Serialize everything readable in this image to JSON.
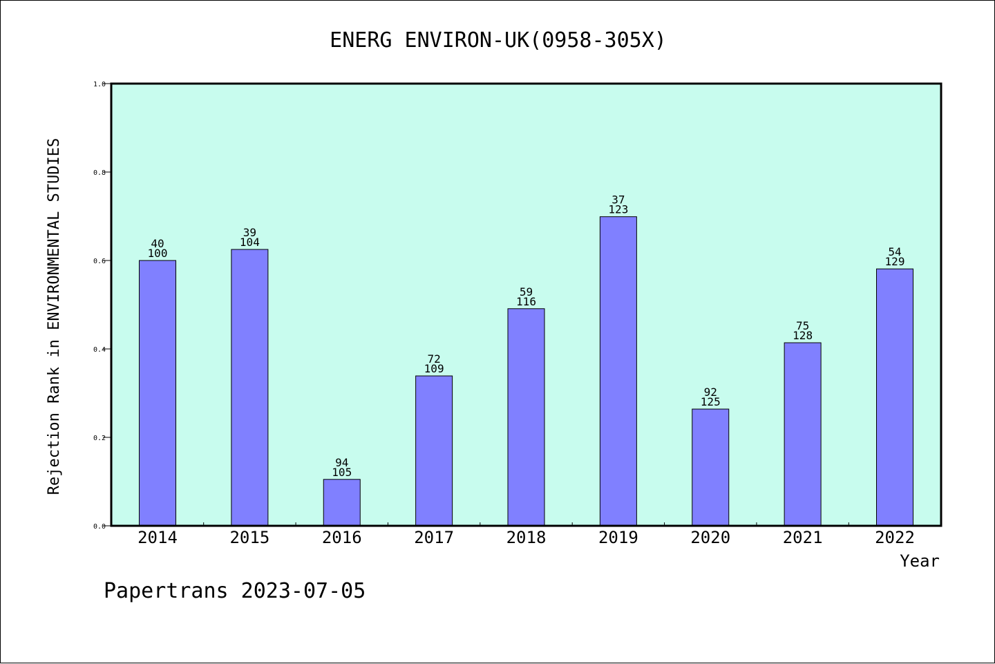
{
  "chart_data": {
    "type": "bar",
    "title": "ENERG ENVIRON-UK(0958-305X)",
    "xlabel": "Year",
    "ylabel": "Rejection Rank in ENVIRONMENTAL STUDIES",
    "categories": [
      "2014",
      "2015",
      "2016",
      "2017",
      "2018",
      "2019",
      "2020",
      "2021",
      "2022"
    ],
    "values": [
      0.6,
      0.625,
      0.105,
      0.339,
      0.491,
      0.699,
      0.264,
      0.414,
      0.581
    ],
    "rank_labels": [
      "40",
      "39",
      "94",
      "72",
      "59",
      "37",
      "92",
      "75",
      "54"
    ],
    "total_labels": [
      "100",
      "104",
      "105",
      "109",
      "116",
      "123",
      "125",
      "128",
      "129"
    ],
    "ylim": [
      0,
      1.0
    ],
    "yticks": [
      "0.0",
      "0.2",
      "0.4",
      "0.6",
      "0.8",
      "1.0"
    ],
    "grid": false,
    "colors": {
      "plot_background": "#c8fcee",
      "bar_fill": "#8080ff",
      "bar_stroke": "#000000"
    }
  },
  "footer": {
    "text": "Papertrans 2023-07-05"
  }
}
